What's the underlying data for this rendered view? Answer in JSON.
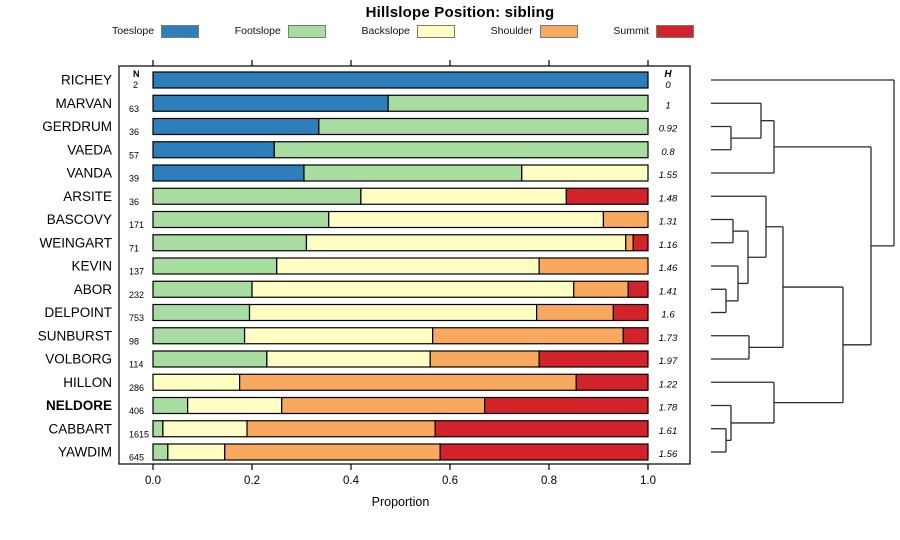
{
  "title": "Hillslope Position: sibling",
  "legend": [
    {
      "label": "Toeslope",
      "color": "#2E7EBC"
    },
    {
      "label": "Footslope",
      "color": "#A8DCA0"
    },
    {
      "label": "Backslope",
      "color": "#FDFDC4"
    },
    {
      "label": "Shoulder",
      "color": "#F9A95F"
    },
    {
      "label": "Summit",
      "color": "#D2232A"
    }
  ],
  "columns": {
    "n_header": "N",
    "h_header": "H"
  },
  "axis": {
    "label": "Proportion",
    "tick_labels": [
      "0.0",
      "0.2",
      "0.4",
      "0.6",
      "0.8",
      "1.0"
    ],
    "tick_values": [
      0,
      0.2,
      0.4,
      0.6,
      0.8,
      1.0
    ],
    "xlim": [
      0,
      1
    ]
  },
  "chart_data": {
    "type": "bar",
    "subtype": "horizontal-stacked-proportion",
    "title": "Hillslope Position: sibling",
    "xlabel": "Proportion",
    "xlim": [
      0,
      1
    ],
    "series_names": [
      "Toeslope",
      "Footslope",
      "Backslope",
      "Shoulder",
      "Summit"
    ],
    "rows": [
      {
        "name": "RICHEY",
        "n": "2",
        "h": "0",
        "bold": false,
        "values": [
          1,
          0,
          0,
          0,
          0
        ]
      },
      {
        "name": "MARVAN",
        "n": "63",
        "h": "1",
        "bold": false,
        "values": [
          0.475,
          0.525,
          0,
          0,
          0
        ]
      },
      {
        "name": "GERDRUM",
        "n": "36",
        "h": "0.92",
        "bold": false,
        "values": [
          0.335,
          0.665,
          0,
          0,
          0
        ]
      },
      {
        "name": "VAEDA",
        "n": "57",
        "h": "0.8",
        "bold": false,
        "values": [
          0.245,
          0.755,
          0,
          0,
          0
        ]
      },
      {
        "name": "VANDA",
        "n": "39",
        "h": "1.55",
        "bold": false,
        "values": [
          0.305,
          0.44,
          0.255,
          0,
          0
        ]
      },
      {
        "name": "ARSITE",
        "n": "36",
        "h": "1.48",
        "bold": false,
        "values": [
          0,
          0.42,
          0.415,
          0,
          0.165
        ]
      },
      {
        "name": "BASCOVY",
        "n": "171",
        "h": "1.31",
        "bold": false,
        "values": [
          0,
          0.355,
          0.555,
          0.09,
          0
        ]
      },
      {
        "name": "WEINGART",
        "n": "71",
        "h": "1.16",
        "bold": false,
        "values": [
          0,
          0.31,
          0.645,
          0.015,
          0.03
        ]
      },
      {
        "name": "KEVIN",
        "n": "137",
        "h": "1.46",
        "bold": false,
        "values": [
          0,
          0.25,
          0.53,
          0.22,
          0
        ]
      },
      {
        "name": "ABOR",
        "n": "232",
        "h": "1.41",
        "bold": false,
        "values": [
          0,
          0.2,
          0.65,
          0.11,
          0.04
        ]
      },
      {
        "name": "DELPOINT",
        "n": "753",
        "h": "1.6",
        "bold": false,
        "values": [
          0,
          0.195,
          0.58,
          0.155,
          0.07
        ]
      },
      {
        "name": "SUNBURST",
        "n": "98",
        "h": "1.73",
        "bold": false,
        "values": [
          0,
          0.185,
          0.38,
          0.385,
          0.05
        ]
      },
      {
        "name": "VOLBORG",
        "n": "114",
        "h": "1.97",
        "bold": false,
        "values": [
          0,
          0.23,
          0.33,
          0.22,
          0.22
        ]
      },
      {
        "name": "HILLON",
        "n": "286",
        "h": "1.22",
        "bold": false,
        "values": [
          0,
          0,
          0.175,
          0.68,
          0.145
        ]
      },
      {
        "name": "NELDORE",
        "n": "406",
        "h": "1.78",
        "bold": true,
        "values": [
          0,
          0.07,
          0.19,
          0.41,
          0.33
        ]
      },
      {
        "name": "CABBART",
        "n": "1615",
        "h": "1.61",
        "bold": false,
        "values": [
          0,
          0.02,
          0.17,
          0.38,
          0.43
        ]
      },
      {
        "name": "YAWDIM",
        "n": "645",
        "h": "1.56",
        "bold": false,
        "values": [
          0,
          0.03,
          0.115,
          0.435,
          0.42
        ]
      }
    ],
    "dendrogram": {
      "h": 183,
      "c": [
        {
          "leaf": "RICHEY"
        },
        {
          "h": 160,
          "c": [
            {
              "h": 63,
              "c": [
                {
                  "h": 50,
                  "c": [
                    {
                      "leaf": "MARVAN"
                    },
                    {
                      "h": 20,
                      "c": [
                        {
                          "leaf": "GERDRUM"
                        },
                        {
                          "leaf": "VAEDA"
                        }
                      ]
                    }
                  ]
                },
                {
                  "leaf": "VANDA"
                }
              ]
            },
            {
              "h": 132,
              "c": [
                {
                  "h": 72,
                  "c": [
                    {
                      "h": 55,
                      "c": [
                        {
                          "leaf": "ARSITE"
                        },
                        {
                          "h": 37,
                          "c": [
                            {
                              "h": 22,
                              "c": [
                                {
                                  "leaf": "BASCOVY"
                                },
                                {
                                  "leaf": "WEINGART"
                                }
                              ]
                            },
                            {
                              "h": 27,
                              "c": [
                                {
                                  "leaf": "KEVIN"
                                },
                                {
                                  "h": 15,
                                  "c": [
                                    {
                                      "leaf": "ABOR"
                                    },
                                    {
                                      "leaf": "DELPOINT"
                                    }
                                  ]
                                }
                              ]
                            }
                          ]
                        }
                      ]
                    },
                    {
                      "h": 38,
                      "c": [
                        {
                          "leaf": "SUNBURST"
                        },
                        {
                          "leaf": "VOLBORG"
                        }
                      ]
                    }
                  ]
                },
                {
                  "h": 63,
                  "c": [
                    {
                      "leaf": "HILLON"
                    },
                    {
                      "h": 20,
                      "c": [
                        {
                          "leaf": "NELDORE"
                        },
                        {
                          "h": 15,
                          "c": [
                            {
                              "leaf": "CABBART"
                            },
                            {
                              "leaf": "YAWDIM"
                            }
                          ]
                        }
                      ]
                    }
                  ]
                }
              ]
            }
          ]
        }
      ]
    }
  }
}
